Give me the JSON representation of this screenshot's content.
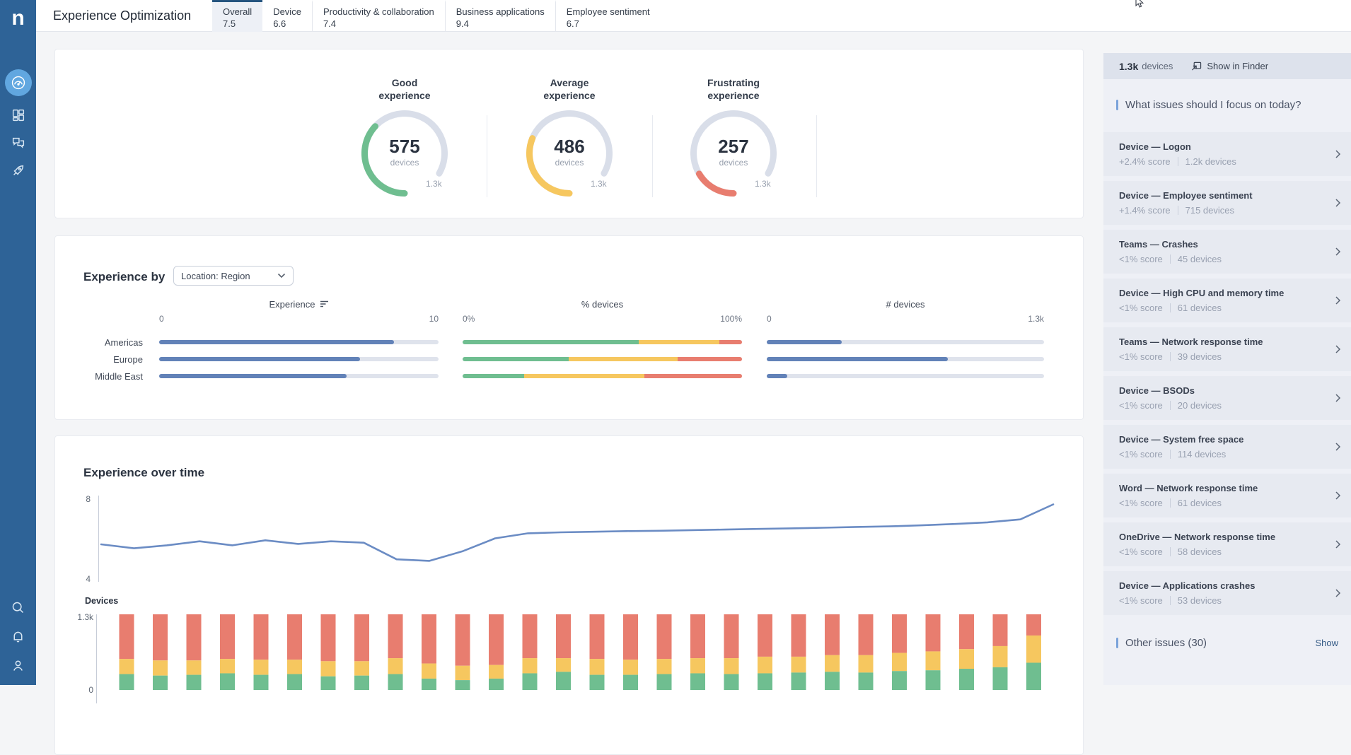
{
  "app": {
    "logo": "n",
    "title": "Experience Optimization"
  },
  "header": {
    "tabs": [
      {
        "label": "Overall",
        "value": "7.5",
        "active": true
      },
      {
        "label": "Device",
        "value": "6.6",
        "active": false
      },
      {
        "label": "Productivity & collaboration",
        "value": "7.4",
        "active": false
      },
      {
        "label": "Business applications",
        "value": "9.4",
        "active": false
      },
      {
        "label": "Employee sentiment",
        "value": "6.7",
        "active": false
      }
    ]
  },
  "sidebar": {
    "active_icon": "gauge-dashboard",
    "top_icons": [
      "gauge-dashboard",
      "grid-dashboards",
      "chat-engage",
      "rocket-campaigns"
    ],
    "bottom_icons": [
      "search",
      "notifications-bell",
      "user-profile"
    ]
  },
  "colors": {
    "good": "#6fbe90",
    "average": "#f6c75f",
    "frustrating": "#e87d6f",
    "bar_blue": "#6282b8",
    "line_blue": "#6b8cc4",
    "track": "#dfe3ec",
    "ring_track": "#d9dee9",
    "sidebar": "#2e6397",
    "accent": "#7aa3da"
  },
  "gauges": {
    "unit": "devices",
    "total": 1300,
    "total_label": "1.3k",
    "items": [
      {
        "title_line1": "Good",
        "title_line2": "experience",
        "value": "575",
        "devices_num": 575,
        "color_key": "good"
      },
      {
        "title_line1": "Average",
        "title_line2": "experience",
        "value": "486",
        "devices_num": 486,
        "color_key": "average"
      },
      {
        "title_line1": "Frustrating",
        "title_line2": "experience",
        "value": "257",
        "devices_num": 257,
        "color_key": "frustrating"
      }
    ]
  },
  "experience_by": {
    "title": "Experience by",
    "dropdown_value": "Location: Region",
    "columns": [
      {
        "header": "Experience",
        "sort": true,
        "min": "0",
        "max": "10"
      },
      {
        "header": "% devices",
        "sort": false,
        "min": "0%",
        "max": "100%"
      },
      {
        "header": "# devices",
        "sort": false,
        "min": "0",
        "max": "1.3k"
      }
    ],
    "chart_data": {
      "type": "bar",
      "categories": [
        "Americas",
        "Europe",
        "Middle East"
      ],
      "experience_score": {
        "max": 10,
        "values": [
          8.4,
          7.2,
          6.7
        ]
      },
      "pct_devices": {
        "series": [
          {
            "name": "good",
            "values": [
              63,
              38,
              22
            ]
          },
          {
            "name": "average",
            "values": [
              29,
              39,
              43
            ]
          },
          {
            "name": "frustrating",
            "values": [
              8,
              23,
              35
            ]
          }
        ]
      },
      "num_devices": {
        "max": 1300,
        "values": [
          350,
          850,
          96
        ]
      }
    }
  },
  "over_time": {
    "title": "Experience over time",
    "line_chart": {
      "type": "line",
      "ymin": 4,
      "ymax": 8,
      "ylabels": [
        "8",
        "4"
      ],
      "values": [
        5.7,
        5.5,
        5.65,
        5.85,
        5.65,
        5.9,
        5.72,
        5.85,
        5.78,
        4.95,
        4.87,
        5.35,
        6.0,
        6.25,
        6.3,
        6.33,
        6.36,
        6.38,
        6.41,
        6.44,
        6.47,
        6.5,
        6.53,
        6.57,
        6.6,
        6.65,
        6.72,
        6.8,
        6.95,
        7.7
      ]
    },
    "bar_chart": {
      "type": "stacked-bar",
      "ylabel": "Devices",
      "ymax_label": "1.3k",
      "ymin_label": "0",
      "total": 1300,
      "series_names": [
        "good",
        "average",
        "frustrating"
      ],
      "bars": [
        [
          0.21,
          0.2,
          0.59
        ],
        [
          0.19,
          0.2,
          0.61
        ],
        [
          0.2,
          0.19,
          0.61
        ],
        [
          0.22,
          0.19,
          0.59
        ],
        [
          0.2,
          0.2,
          0.6
        ],
        [
          0.21,
          0.19,
          0.6
        ],
        [
          0.18,
          0.2,
          0.62
        ],
        [
          0.19,
          0.19,
          0.62
        ],
        [
          0.21,
          0.21,
          0.58
        ],
        [
          0.15,
          0.2,
          0.65
        ],
        [
          0.13,
          0.19,
          0.68
        ],
        [
          0.15,
          0.18,
          0.67
        ],
        [
          0.22,
          0.2,
          0.58
        ],
        [
          0.24,
          0.18,
          0.58
        ],
        [
          0.2,
          0.21,
          0.59
        ],
        [
          0.2,
          0.2,
          0.6
        ],
        [
          0.21,
          0.2,
          0.59
        ],
        [
          0.22,
          0.2,
          0.58
        ],
        [
          0.21,
          0.21,
          0.58
        ],
        [
          0.22,
          0.22,
          0.56
        ],
        [
          0.23,
          0.21,
          0.56
        ],
        [
          0.24,
          0.22,
          0.54
        ],
        [
          0.23,
          0.23,
          0.54
        ],
        [
          0.25,
          0.24,
          0.51
        ],
        [
          0.26,
          0.25,
          0.49
        ],
        [
          0.28,
          0.26,
          0.46
        ],
        [
          0.3,
          0.28,
          0.42
        ],
        [
          0.36,
          0.36,
          0.28
        ]
      ]
    }
  },
  "right_panel": {
    "device_count": "1.3k",
    "device_unit": "devices",
    "finder_link": "Show in Finder",
    "heading": "What issues should I focus on today?",
    "issues": [
      {
        "title": "Device — Logon",
        "score": "+2.4% score",
        "devices": "1.2k devices"
      },
      {
        "title": "Device — Employee sentiment",
        "score": "+1.4% score",
        "devices": "715 devices"
      },
      {
        "title": "Teams — Crashes",
        "score": "<1% score",
        "devices": "45 devices"
      },
      {
        "title": "Device — High CPU and memory time",
        "score": "<1% score",
        "devices": "61 devices"
      },
      {
        "title": "Teams — Network response time",
        "score": "<1% score",
        "devices": "39 devices"
      },
      {
        "title": "Device — BSODs",
        "score": "<1% score",
        "devices": "20 devices"
      },
      {
        "title": "Device — System free space",
        "score": "<1% score",
        "devices": "114 devices"
      },
      {
        "title": "Word — Network response time",
        "score": "<1% score",
        "devices": "61 devices"
      },
      {
        "title": "OneDrive — Network response time",
        "score": "<1% score",
        "devices": "58 devices"
      },
      {
        "title": "Device — Applications crashes",
        "score": "<1% score",
        "devices": "53 devices"
      }
    ],
    "other_issues": "Other issues (30)",
    "show_label": "Show"
  }
}
